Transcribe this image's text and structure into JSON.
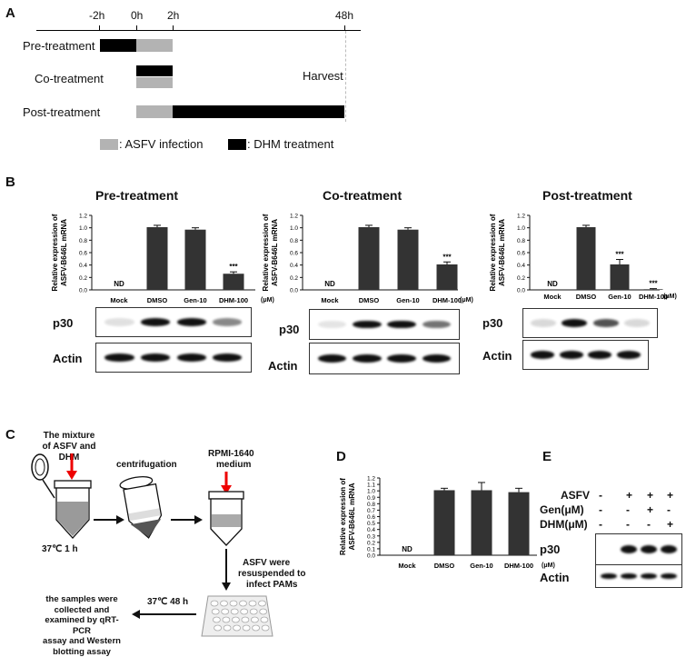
{
  "panel_labels": {
    "a": "A",
    "b": "B",
    "c": "C",
    "d": "D",
    "e": "E"
  },
  "timeline": {
    "ticks": [
      "-2h",
      "0h",
      "2h",
      "48h"
    ],
    "rows": [
      "Pre-treatment",
      "Co-treatment",
      "Post-treatment"
    ],
    "harvest": "Harvest",
    "legend_infection": ": ASFV infection",
    "legend_dhm": ": DHM treatment",
    "colors": {
      "infection": "#b3b3b3",
      "dhm": "#000000"
    }
  },
  "unit_label": "(μM)",
  "blot_labels": {
    "p30": "p30",
    "actin": "Actin"
  },
  "not_detected": "ND",
  "chart_data": [
    {
      "type": "bar",
      "title": "Pre-treatment",
      "ylabel": "Relative expression of ASFV-B646L mRNA",
      "categories": [
        "Mock",
        "DMSO",
        "Gen-10",
        "DHM-100"
      ],
      "values": [
        0,
        1.01,
        0.97,
        0.26
      ],
      "errors": [
        0,
        0.03,
        0.03,
        0.03
      ],
      "annotations": [
        "ND",
        "",
        "",
        "***"
      ],
      "ylim": [
        0,
        1.2
      ],
      "yticks": [
        "0.0",
        "0.2",
        "0.4",
        "0.6",
        "0.8",
        "1.0",
        "1.2"
      ],
      "bar_color": "#333333"
    },
    {
      "type": "bar",
      "title": "Co-treatment",
      "ylabel": "Relative expression of ASFV-B646L mRNA",
      "categories": [
        "Mock",
        "DMSO",
        "Gen-10",
        "DHM-100"
      ],
      "values": [
        0,
        1.01,
        0.97,
        0.41
      ],
      "errors": [
        0,
        0.03,
        0.03,
        0.04
      ],
      "annotations": [
        "ND",
        "",
        "",
        "***"
      ],
      "ylim": [
        0,
        1.2
      ],
      "yticks": [
        "0.0",
        "0.2",
        "0.4",
        "0.6",
        "0.8",
        "1.0",
        "1.2"
      ],
      "bar_color": "#333333"
    },
    {
      "type": "bar",
      "title": "Post-treatment",
      "ylabel": "Relative expression of ASFV-B646L mRNA",
      "categories": [
        "Mock",
        "DMSO",
        "Gen-10",
        "DHM-100"
      ],
      "values": [
        0,
        1.01,
        0.41,
        0.01
      ],
      "errors": [
        0,
        0.03,
        0.08,
        0.01
      ],
      "annotations": [
        "ND",
        "",
        "***",
        "***"
      ],
      "ylim": [
        0,
        1.2
      ],
      "yticks": [
        "0.0",
        "0.2",
        "0.4",
        "0.6",
        "0.8",
        "1.0",
        "1.2"
      ],
      "bar_color": "#333333"
    },
    {
      "type": "bar",
      "title": "",
      "ylabel": "Relative expression of ASFV-B646L mRNA",
      "categories": [
        "Mock",
        "DMSO",
        "Gen-10",
        "DHM-100"
      ],
      "values": [
        0,
        1.01,
        1.01,
        0.98
      ],
      "errors": [
        0,
        0.03,
        0.12,
        0.06
      ],
      "annotations": [
        "ND",
        "",
        "",
        ""
      ],
      "ylim": [
        0,
        1.2
      ],
      "yticks": [
        "0.0",
        "0.1",
        "0.2",
        "0.3",
        "0.4",
        "0.5",
        "0.6",
        "0.7",
        "0.8",
        "0.9",
        "1.0",
        "1.1",
        "1.2"
      ],
      "bar_color": "#333333"
    }
  ],
  "blots_b": [
    {
      "p30": [
        0.05,
        1.0,
        1.0,
        0.45
      ],
      "actin": [
        1,
        1,
        1,
        1
      ]
    },
    {
      "p30": [
        0.03,
        1.0,
        1.0,
        0.55
      ],
      "actin": [
        1,
        1,
        1,
        1
      ]
    },
    {
      "p30": [
        0.08,
        1.0,
        0.7,
        0.08
      ],
      "actin": [
        1,
        1,
        1,
        1
      ]
    }
  ],
  "panel_c": {
    "mixture": "The mixture of ASFV and DHM",
    "centrifugation": "centrifugation",
    "medium_line1": "RPMI-1640",
    "medium_line2": "medium",
    "incubation1": "37℃  1 h",
    "resuspend_line1": "ASFV were",
    "resuspend_line2": "resuspended to",
    "resuspend_line3": "infect PAMs",
    "incubation2": "37℃  48 h",
    "samples_line1": "the samples were",
    "samples_line2": "collected and",
    "samples_line3": "examined by qRT-PCR",
    "samples_line4": "assay and Western",
    "samples_line5": "blotting assay"
  },
  "panel_e": {
    "rows": [
      {
        "label": "ASFV",
        "signs": [
          "-",
          "+",
          "+",
          "+"
        ]
      },
      {
        "label": "Gen(μM)",
        "signs": [
          "-",
          "-",
          "+",
          "-"
        ]
      },
      {
        "label": "DHM(μM)",
        "signs": [
          "-",
          "-",
          "-",
          "+"
        ]
      }
    ],
    "p30": [
      0,
      1,
      1,
      1
    ],
    "actin": [
      1,
      1,
      1,
      1
    ]
  }
}
